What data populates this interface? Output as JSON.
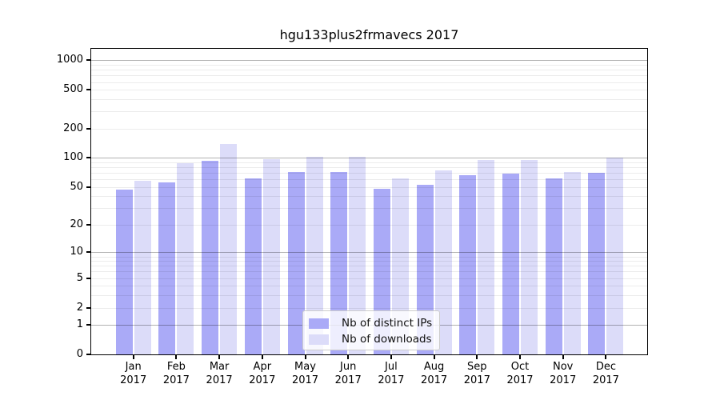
{
  "chart_data": {
    "type": "bar",
    "title": "hgu133plus2frmavecs 2017",
    "xlabel": "",
    "ylabel": "",
    "year": "2017",
    "categories": [
      "Jan",
      "Feb",
      "Mar",
      "Apr",
      "May",
      "Jun",
      "Jul",
      "Aug",
      "Sep",
      "Oct",
      "Nov",
      "Dec"
    ],
    "series": [
      {
        "name": "Nb of distinct IPs",
        "color": "#aaaaf7",
        "values": [
          47,
          56,
          93,
          62,
          72,
          72,
          48,
          53,
          66,
          69,
          62,
          70
        ]
      },
      {
        "name": "Nb of downloads",
        "color": "#dcdcf9",
        "values": [
          58,
          88,
          140,
          98,
          103,
          102,
          62,
          75,
          95,
          95,
          72,
          101
        ]
      }
    ],
    "y_scale": "log1p",
    "y_ticks": [
      0,
      1,
      2,
      5,
      10,
      20,
      50,
      100,
      200,
      500,
      1000
    ],
    "ylim": [
      0,
      1330
    ],
    "grid": "both",
    "legend_position": "lower center",
    "grid_major_color": "#b3b3b3",
    "grid_minor_color": "#ebebeb",
    "spine_color": "#000000"
  }
}
